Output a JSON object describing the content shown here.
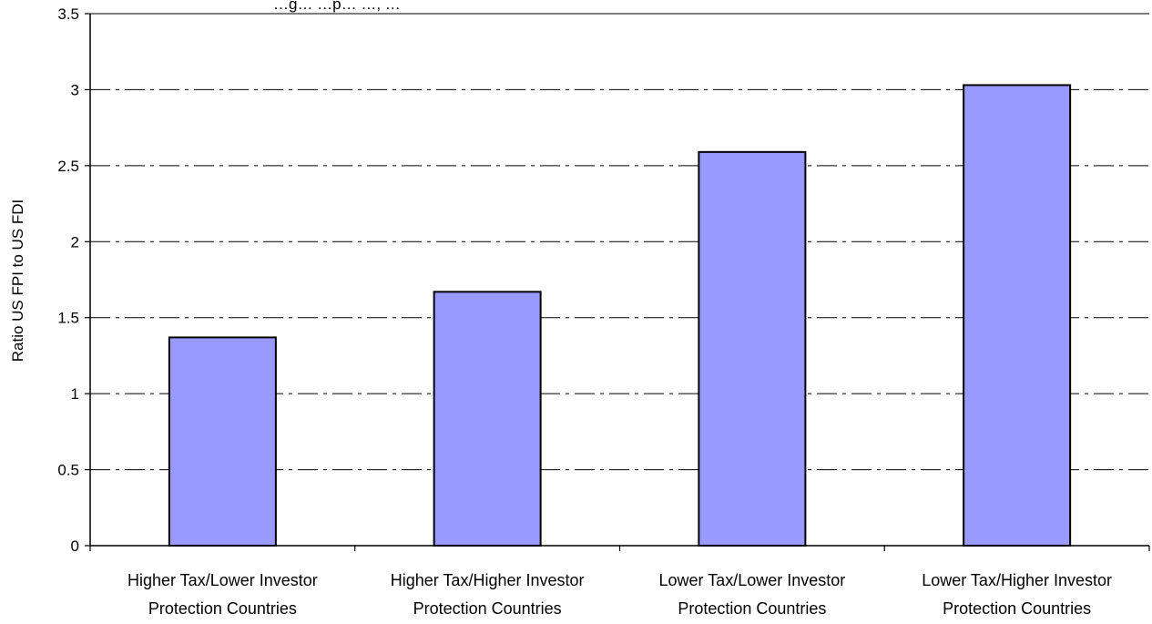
{
  "chart_data": {
    "type": "bar",
    "title": "…g… …p… …, …",
    "categories": [
      [
        "Higher Tax/Lower Investor",
        "Protection Countries"
      ],
      [
        "Higher Tax/Higher Investor",
        "Protection Countries"
      ],
      [
        "Lower Tax/Lower Investor",
        "Protection Countries"
      ],
      [
        "Lower Tax/Higher Investor",
        "Protection Countries"
      ]
    ],
    "values": [
      1.37,
      1.67,
      2.59,
      3.03
    ],
    "ylabel": "Ratio US FPI to US FDI",
    "xlabel": "",
    "ylim": [
      0,
      3.5
    ],
    "yticks": [
      "0",
      "0.5",
      "1",
      "1.5",
      "2",
      "2.5",
      "3",
      "3.5"
    ],
    "bar_color": "#9999ff",
    "bar_border_color": "#000000",
    "grid": "horizontal dash-dot",
    "legend": "none"
  }
}
